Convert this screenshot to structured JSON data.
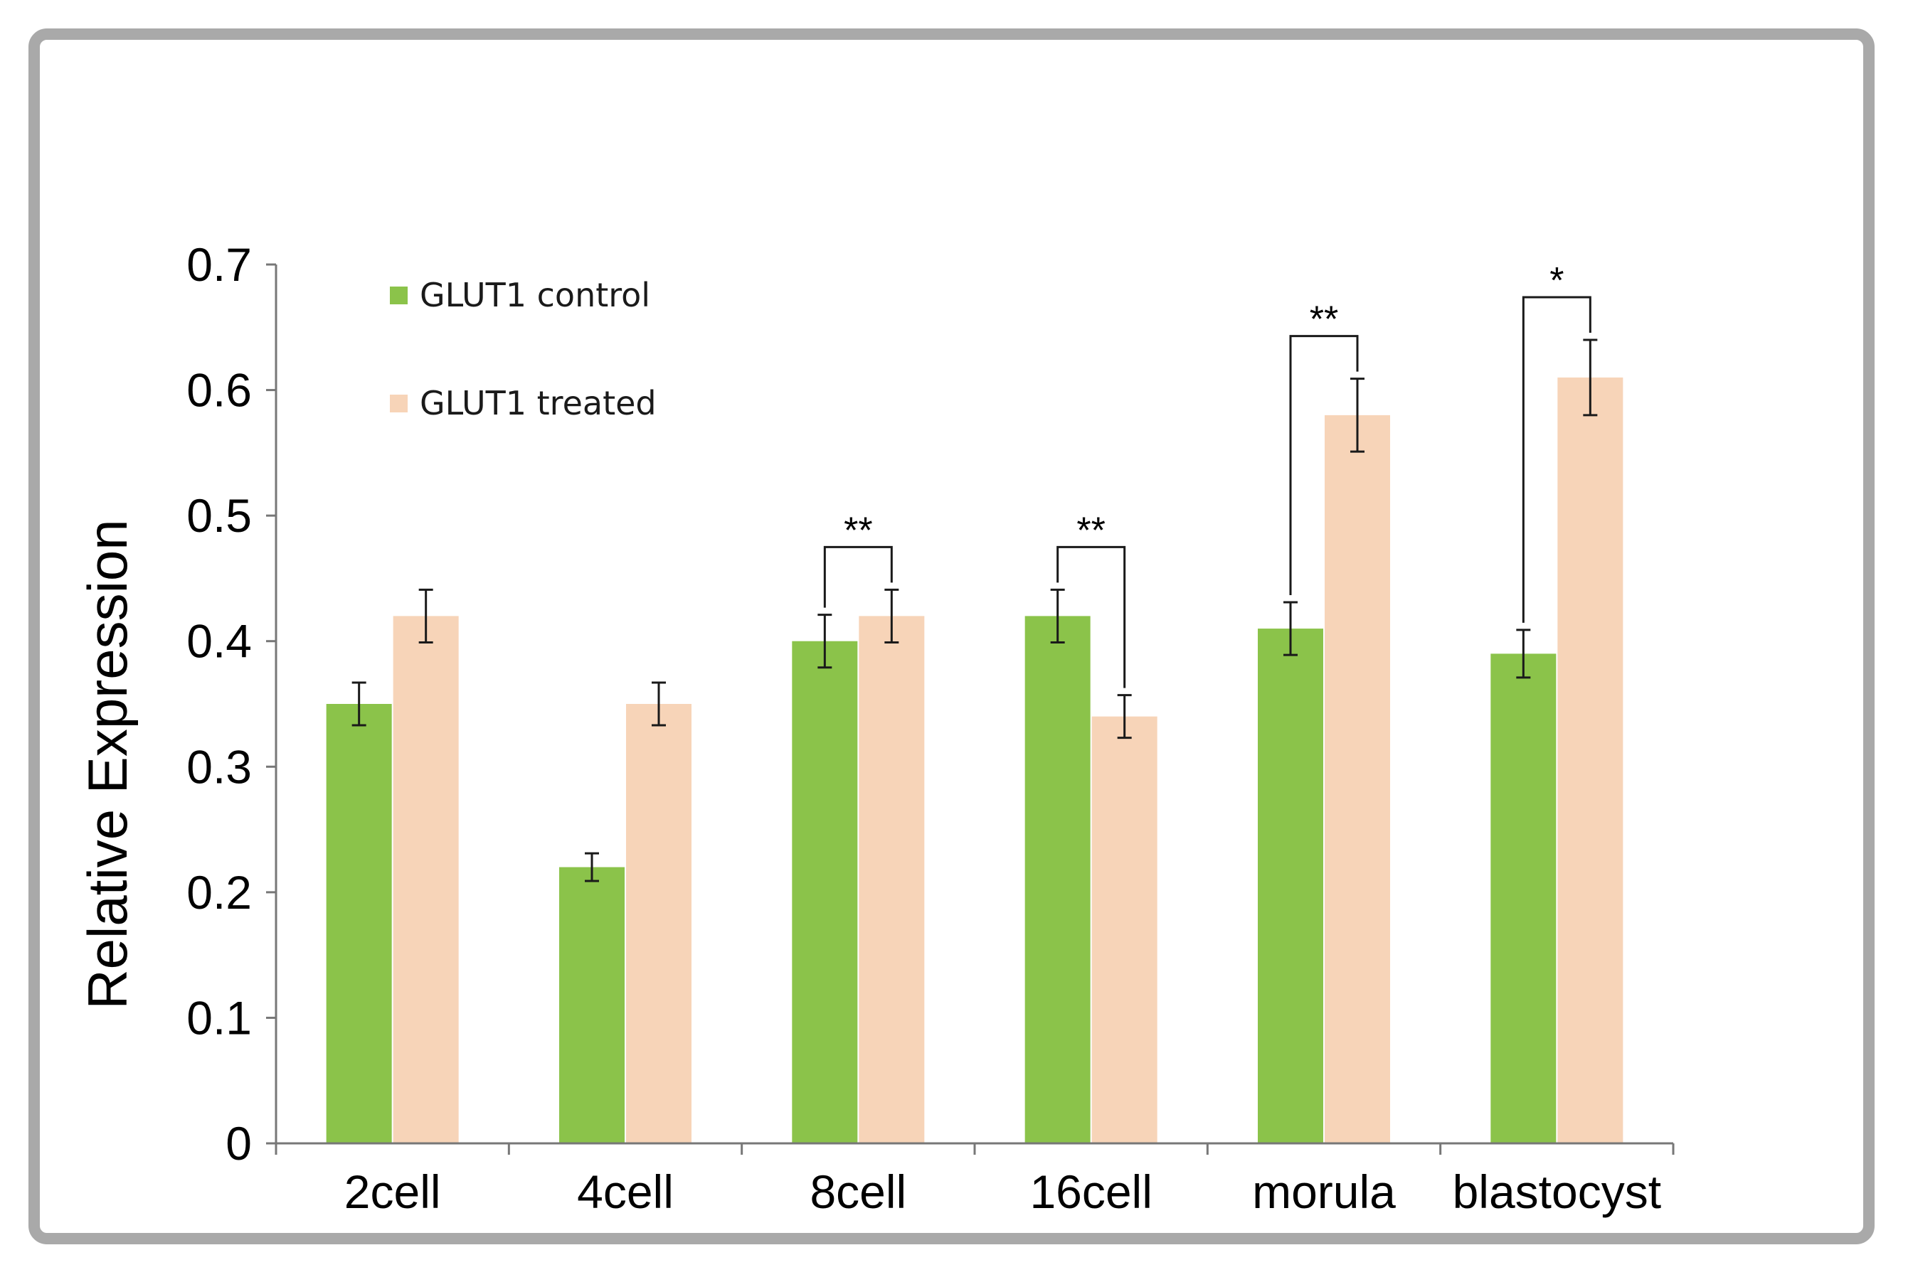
{
  "chart_data": {
    "type": "bar",
    "title": "",
    "xlabel": "",
    "ylabel": "Relative Expression",
    "ylim": [
      0,
      0.7
    ],
    "yticks": [
      "0",
      "0.1",
      "0.2",
      "0.3",
      "0.4",
      "0.5",
      "0.6",
      "0.7"
    ],
    "categories": [
      "2cell",
      "4cell",
      "8cell",
      "16cell",
      "morula",
      "blastocyst"
    ],
    "series": [
      {
        "name": "GLUT1 control",
        "color": "#8bc34a",
        "values": [
          0.35,
          0.22,
          0.4,
          0.42,
          0.41,
          0.39
        ],
        "errors": [
          0.017,
          0.011,
          0.021,
          0.021,
          0.021,
          0.019
        ]
      },
      {
        "name": "GLUT1 treated",
        "color": "#f7d4b8",
        "values": [
          0.42,
          0.35,
          0.42,
          0.34,
          0.58,
          0.61
        ],
        "errors": [
          0.021,
          0.017,
          0.021,
          0.017,
          0.029,
          0.03
        ]
      }
    ],
    "significance": [
      {
        "category": "8cell",
        "label": "**"
      },
      {
        "category": "16cell",
        "label": "**"
      },
      {
        "category": "morula",
        "label": "**"
      },
      {
        "category": "blastocyst",
        "label": "*"
      }
    ],
    "legend": "top-left",
    "grid": false
  }
}
